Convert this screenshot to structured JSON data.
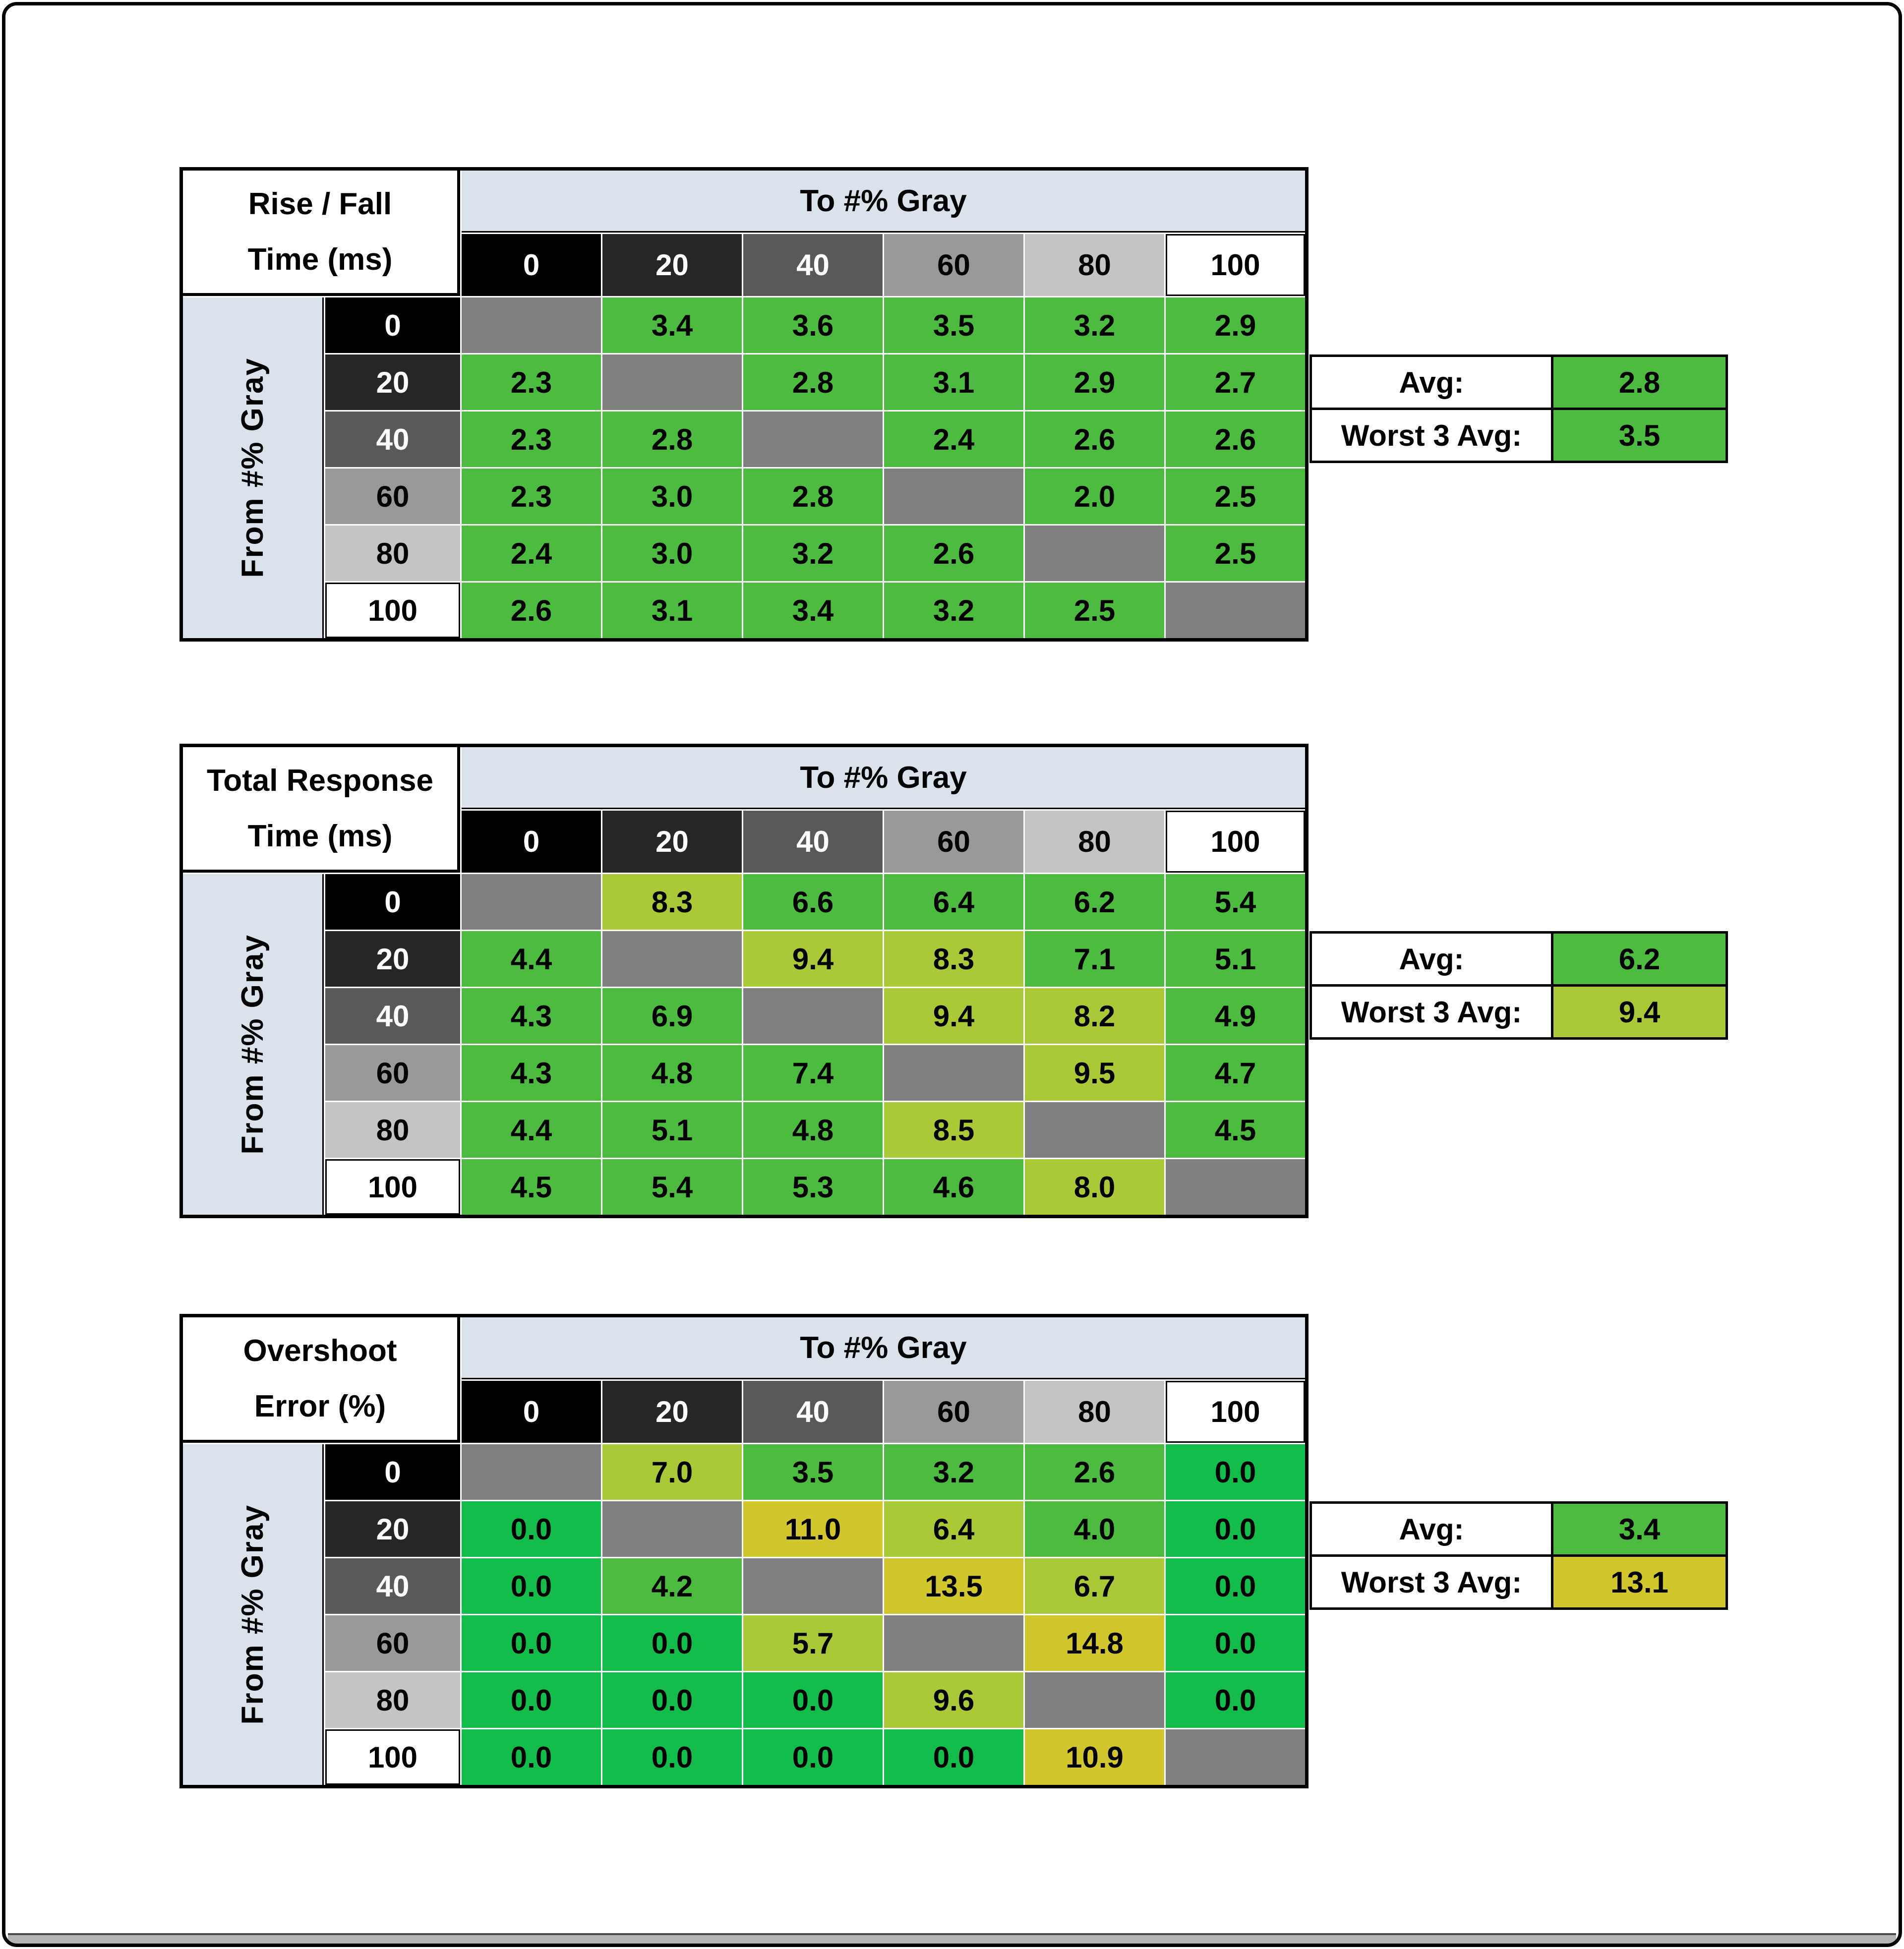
{
  "window": {
    "background": "#ffffff",
    "border_color": "#000000",
    "scrollbar_color": "#b5b5b5"
  },
  "colors": {
    "cell": {
      "g": "#4cbb3f",
      "bg": "#12bd4b",
      "yg": "#a9ca36",
      "y": "#d1c62b",
      "d": "#7f7f7f"
    },
    "header_blue": "#dae3eb",
    "shades": [
      {
        "bg": "#000000",
        "fg": "#ffffff"
      },
      {
        "bg": "#262626",
        "fg": "#ffffff"
      },
      {
        "bg": "#595959",
        "fg": "#ffffff"
      },
      {
        "bg": "#999999",
        "fg": "#000000"
      },
      {
        "bg": "#c4c4c4",
        "fg": "#000000"
      },
      {
        "bg": "#ffffff",
        "fg": "#000000"
      }
    ]
  },
  "common": {
    "to_label": "To #% Gray",
    "from_label": "From #% Gray",
    "gray_levels": [
      "0",
      "20",
      "40",
      "60",
      "80",
      "100"
    ],
    "avg_label": "Avg:",
    "worst_label": "Worst 3 Avg:"
  },
  "tables": [
    {
      "title_line1": "Rise / Fall",
      "title_line2": "Time (ms)",
      "avg": {
        "value": "2.8",
        "color": "g"
      },
      "worst3": {
        "value": "3.5",
        "color": "g"
      },
      "rows": [
        {
          "from": "0",
          "cells": [
            {
              "v": "",
              "c": "d"
            },
            {
              "v": "3.4",
              "c": "g"
            },
            {
              "v": "3.6",
              "c": "g"
            },
            {
              "v": "3.5",
              "c": "g"
            },
            {
              "v": "3.2",
              "c": "g"
            },
            {
              "v": "2.9",
              "c": "g"
            }
          ]
        },
        {
          "from": "20",
          "cells": [
            {
              "v": "2.3",
              "c": "g"
            },
            {
              "v": "",
              "c": "d"
            },
            {
              "v": "2.8",
              "c": "g"
            },
            {
              "v": "3.1",
              "c": "g"
            },
            {
              "v": "2.9",
              "c": "g"
            },
            {
              "v": "2.7",
              "c": "g"
            }
          ]
        },
        {
          "from": "40",
          "cells": [
            {
              "v": "2.3",
              "c": "g"
            },
            {
              "v": "2.8",
              "c": "g"
            },
            {
              "v": "",
              "c": "d"
            },
            {
              "v": "2.4",
              "c": "g"
            },
            {
              "v": "2.6",
              "c": "g"
            },
            {
              "v": "2.6",
              "c": "g"
            }
          ]
        },
        {
          "from": "60",
          "cells": [
            {
              "v": "2.3",
              "c": "g"
            },
            {
              "v": "3.0",
              "c": "g"
            },
            {
              "v": "2.8",
              "c": "g"
            },
            {
              "v": "",
              "c": "d"
            },
            {
              "v": "2.0",
              "c": "g"
            },
            {
              "v": "2.5",
              "c": "g"
            }
          ]
        },
        {
          "from": "80",
          "cells": [
            {
              "v": "2.4",
              "c": "g"
            },
            {
              "v": "3.0",
              "c": "g"
            },
            {
              "v": "3.2",
              "c": "g"
            },
            {
              "v": "2.6",
              "c": "g"
            },
            {
              "v": "",
              "c": "d"
            },
            {
              "v": "2.5",
              "c": "g"
            }
          ]
        },
        {
          "from": "100",
          "cells": [
            {
              "v": "2.6",
              "c": "g"
            },
            {
              "v": "3.1",
              "c": "g"
            },
            {
              "v": "3.4",
              "c": "g"
            },
            {
              "v": "3.2",
              "c": "g"
            },
            {
              "v": "2.5",
              "c": "g"
            },
            {
              "v": "",
              "c": "d"
            }
          ]
        }
      ]
    },
    {
      "title_line1": "Total Response",
      "title_line2": "Time (ms)",
      "avg": {
        "value": "6.2",
        "color": "g"
      },
      "worst3": {
        "value": "9.4",
        "color": "yg"
      },
      "rows": [
        {
          "from": "0",
          "cells": [
            {
              "v": "",
              "c": "d"
            },
            {
              "v": "8.3",
              "c": "yg"
            },
            {
              "v": "6.6",
              "c": "g"
            },
            {
              "v": "6.4",
              "c": "g"
            },
            {
              "v": "6.2",
              "c": "g"
            },
            {
              "v": "5.4",
              "c": "g"
            }
          ]
        },
        {
          "from": "20",
          "cells": [
            {
              "v": "4.4",
              "c": "g"
            },
            {
              "v": "",
              "c": "d"
            },
            {
              "v": "9.4",
              "c": "yg"
            },
            {
              "v": "8.3",
              "c": "yg"
            },
            {
              "v": "7.1",
              "c": "g"
            },
            {
              "v": "5.1",
              "c": "g"
            }
          ]
        },
        {
          "from": "40",
          "cells": [
            {
              "v": "4.3",
              "c": "g"
            },
            {
              "v": "6.9",
              "c": "g"
            },
            {
              "v": "",
              "c": "d"
            },
            {
              "v": "9.4",
              "c": "yg"
            },
            {
              "v": "8.2",
              "c": "yg"
            },
            {
              "v": "4.9",
              "c": "g"
            }
          ]
        },
        {
          "from": "60",
          "cells": [
            {
              "v": "4.3",
              "c": "g"
            },
            {
              "v": "4.8",
              "c": "g"
            },
            {
              "v": "7.4",
              "c": "g"
            },
            {
              "v": "",
              "c": "d"
            },
            {
              "v": "9.5",
              "c": "yg"
            },
            {
              "v": "4.7",
              "c": "g"
            }
          ]
        },
        {
          "from": "80",
          "cells": [
            {
              "v": "4.4",
              "c": "g"
            },
            {
              "v": "5.1",
              "c": "g"
            },
            {
              "v": "4.8",
              "c": "g"
            },
            {
              "v": "8.5",
              "c": "yg"
            },
            {
              "v": "",
              "c": "d"
            },
            {
              "v": "4.5",
              "c": "g"
            }
          ]
        },
        {
          "from": "100",
          "cells": [
            {
              "v": "4.5",
              "c": "g"
            },
            {
              "v": "5.4",
              "c": "g"
            },
            {
              "v": "5.3",
              "c": "g"
            },
            {
              "v": "4.6",
              "c": "g"
            },
            {
              "v": "8.0",
              "c": "yg"
            },
            {
              "v": "",
              "c": "d"
            }
          ]
        }
      ]
    },
    {
      "title_line1": "Overshoot",
      "title_line2": "Error (%)",
      "avg": {
        "value": "3.4",
        "color": "g"
      },
      "worst3": {
        "value": "13.1",
        "color": "y"
      },
      "rows": [
        {
          "from": "0",
          "cells": [
            {
              "v": "",
              "c": "d"
            },
            {
              "v": "7.0",
              "c": "yg"
            },
            {
              "v": "3.5",
              "c": "g"
            },
            {
              "v": "3.2",
              "c": "g"
            },
            {
              "v": "2.6",
              "c": "g"
            },
            {
              "v": "0.0",
              "c": "bg"
            }
          ]
        },
        {
          "from": "20",
          "cells": [
            {
              "v": "0.0",
              "c": "bg"
            },
            {
              "v": "",
              "c": "d"
            },
            {
              "v": "11.0",
              "c": "y"
            },
            {
              "v": "6.4",
              "c": "yg"
            },
            {
              "v": "4.0",
              "c": "g"
            },
            {
              "v": "0.0",
              "c": "bg"
            }
          ]
        },
        {
          "from": "40",
          "cells": [
            {
              "v": "0.0",
              "c": "bg"
            },
            {
              "v": "4.2",
              "c": "g"
            },
            {
              "v": "",
              "c": "d"
            },
            {
              "v": "13.5",
              "c": "y"
            },
            {
              "v": "6.7",
              "c": "yg"
            },
            {
              "v": "0.0",
              "c": "bg"
            }
          ]
        },
        {
          "from": "60",
          "cells": [
            {
              "v": "0.0",
              "c": "bg"
            },
            {
              "v": "0.0",
              "c": "bg"
            },
            {
              "v": "5.7",
              "c": "yg"
            },
            {
              "v": "",
              "c": "d"
            },
            {
              "v": "14.8",
              "c": "y"
            },
            {
              "v": "0.0",
              "c": "bg"
            }
          ]
        },
        {
          "from": "80",
          "cells": [
            {
              "v": "0.0",
              "c": "bg"
            },
            {
              "v": "0.0",
              "c": "bg"
            },
            {
              "v": "0.0",
              "c": "bg"
            },
            {
              "v": "9.6",
              "c": "yg"
            },
            {
              "v": "",
              "c": "d"
            },
            {
              "v": "0.0",
              "c": "bg"
            }
          ]
        },
        {
          "from": "100",
          "cells": [
            {
              "v": "0.0",
              "c": "bg"
            },
            {
              "v": "0.0",
              "c": "bg"
            },
            {
              "v": "0.0",
              "c": "bg"
            },
            {
              "v": "0.0",
              "c": "bg"
            },
            {
              "v": "10.9",
              "c": "y"
            },
            {
              "v": "",
              "c": "d"
            }
          ]
        }
      ]
    }
  ],
  "chart_data": [
    {
      "type": "heatmap",
      "title": "Rise / Fall Time (ms)",
      "xlabel": "To #% Gray",
      "ylabel": "From #% Gray",
      "x": [
        0,
        20,
        40,
        60,
        80,
        100
      ],
      "y": [
        0,
        20,
        40,
        60,
        80,
        100
      ],
      "values": [
        [
          null,
          3.4,
          3.6,
          3.5,
          3.2,
          2.9
        ],
        [
          2.3,
          null,
          2.8,
          3.1,
          2.9,
          2.7
        ],
        [
          2.3,
          2.8,
          null,
          2.4,
          2.6,
          2.6
        ],
        [
          2.3,
          3.0,
          2.8,
          null,
          2.0,
          2.5
        ],
        [
          2.4,
          3.0,
          3.2,
          2.6,
          null,
          2.5
        ],
        [
          2.6,
          3.1,
          3.4,
          3.2,
          2.5,
          null
        ]
      ],
      "avg": 2.8,
      "worst_3_avg": 3.5
    },
    {
      "type": "heatmap",
      "title": "Total Response Time (ms)",
      "xlabel": "To #% Gray",
      "ylabel": "From #% Gray",
      "x": [
        0,
        20,
        40,
        60,
        80,
        100
      ],
      "y": [
        0,
        20,
        40,
        60,
        80,
        100
      ],
      "values": [
        [
          null,
          8.3,
          6.6,
          6.4,
          6.2,
          5.4
        ],
        [
          4.4,
          null,
          9.4,
          8.3,
          7.1,
          5.1
        ],
        [
          4.3,
          6.9,
          null,
          9.4,
          8.2,
          4.9
        ],
        [
          4.3,
          4.8,
          7.4,
          null,
          9.5,
          4.7
        ],
        [
          4.4,
          5.1,
          4.8,
          8.5,
          null,
          4.5
        ],
        [
          4.5,
          5.4,
          5.3,
          4.6,
          8.0,
          null
        ]
      ],
      "avg": 6.2,
      "worst_3_avg": 9.4
    },
    {
      "type": "heatmap",
      "title": "Overshoot Error (%)",
      "xlabel": "To #% Gray",
      "ylabel": "From #% Gray",
      "x": [
        0,
        20,
        40,
        60,
        80,
        100
      ],
      "y": [
        0,
        20,
        40,
        60,
        80,
        100
      ],
      "values": [
        [
          null,
          7.0,
          3.5,
          3.2,
          2.6,
          0.0
        ],
        [
          0.0,
          null,
          11.0,
          6.4,
          4.0,
          0.0
        ],
        [
          0.0,
          4.2,
          null,
          13.5,
          6.7,
          0.0
        ],
        [
          0.0,
          0.0,
          5.7,
          null,
          14.8,
          0.0
        ],
        [
          0.0,
          0.0,
          0.0,
          9.6,
          null,
          0.0
        ],
        [
          0.0,
          0.0,
          0.0,
          0.0,
          10.9,
          null
        ]
      ],
      "avg": 3.4,
      "worst_3_avg": 13.1
    }
  ]
}
